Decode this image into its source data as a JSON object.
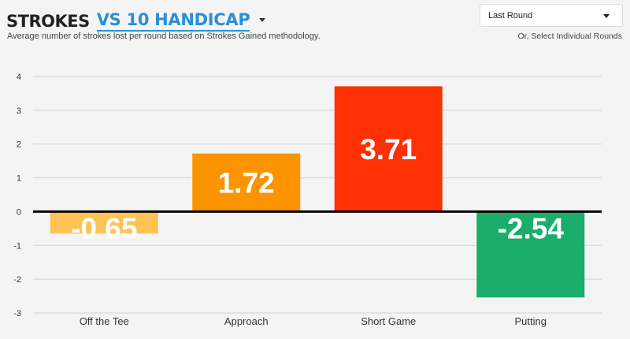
{
  "header": {
    "title": "STROKES",
    "compare_label": "VS 10 HANDICAP",
    "subtitle": "Average number of strokes lost per round based on Strokes Gained methodology."
  },
  "round_select": {
    "selected": "Last Round",
    "alt_link": "Or, Select Individual Rounds"
  },
  "chart_data": {
    "type": "bar",
    "categories": [
      "Off the Tee",
      "Approach",
      "Short Game",
      "Putting"
    ],
    "values": [
      -0.65,
      1.72,
      3.71,
      -2.54
    ],
    "value_labels": [
      "-0.65",
      "1.72",
      "3.71",
      "-2.54"
    ],
    "colors": [
      "#fdc455",
      "#fb9400",
      "#fe3004",
      "#1aae6a"
    ],
    "ylim": [
      -3,
      4
    ],
    "yticks": [
      "-3",
      "-2",
      "-1",
      "0",
      "1",
      "2",
      "3",
      "4"
    ],
    "grid": true,
    "xlabel": "",
    "ylabel": ""
  }
}
